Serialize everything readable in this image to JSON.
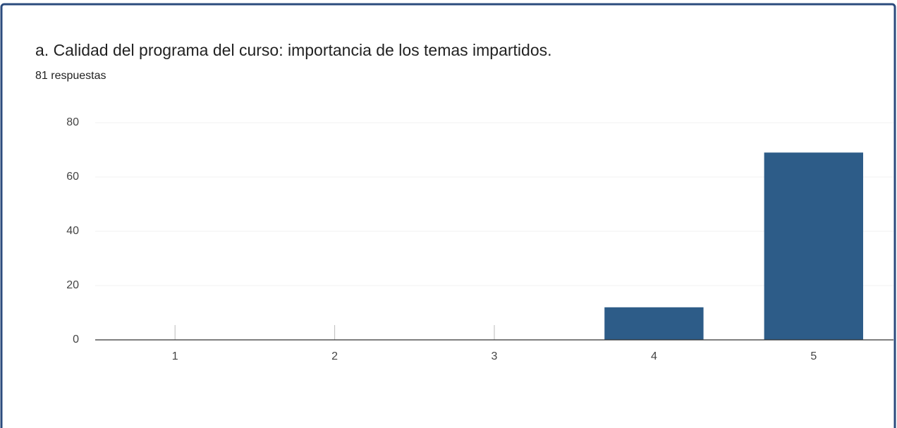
{
  "chart_data": {
    "type": "bar",
    "title": "a. Calidad del programa del curso: importancia de los temas impartidos.",
    "subtitle": "81 respuestas",
    "categories": [
      "1",
      "2",
      "3",
      "4",
      "5"
    ],
    "values": [
      0,
      0,
      0,
      12,
      69
    ],
    "color": "#2d5c88",
    "ylim": [
      0,
      80
    ],
    "yticks": [
      0,
      20,
      40,
      60,
      80
    ],
    "grid": true
  }
}
